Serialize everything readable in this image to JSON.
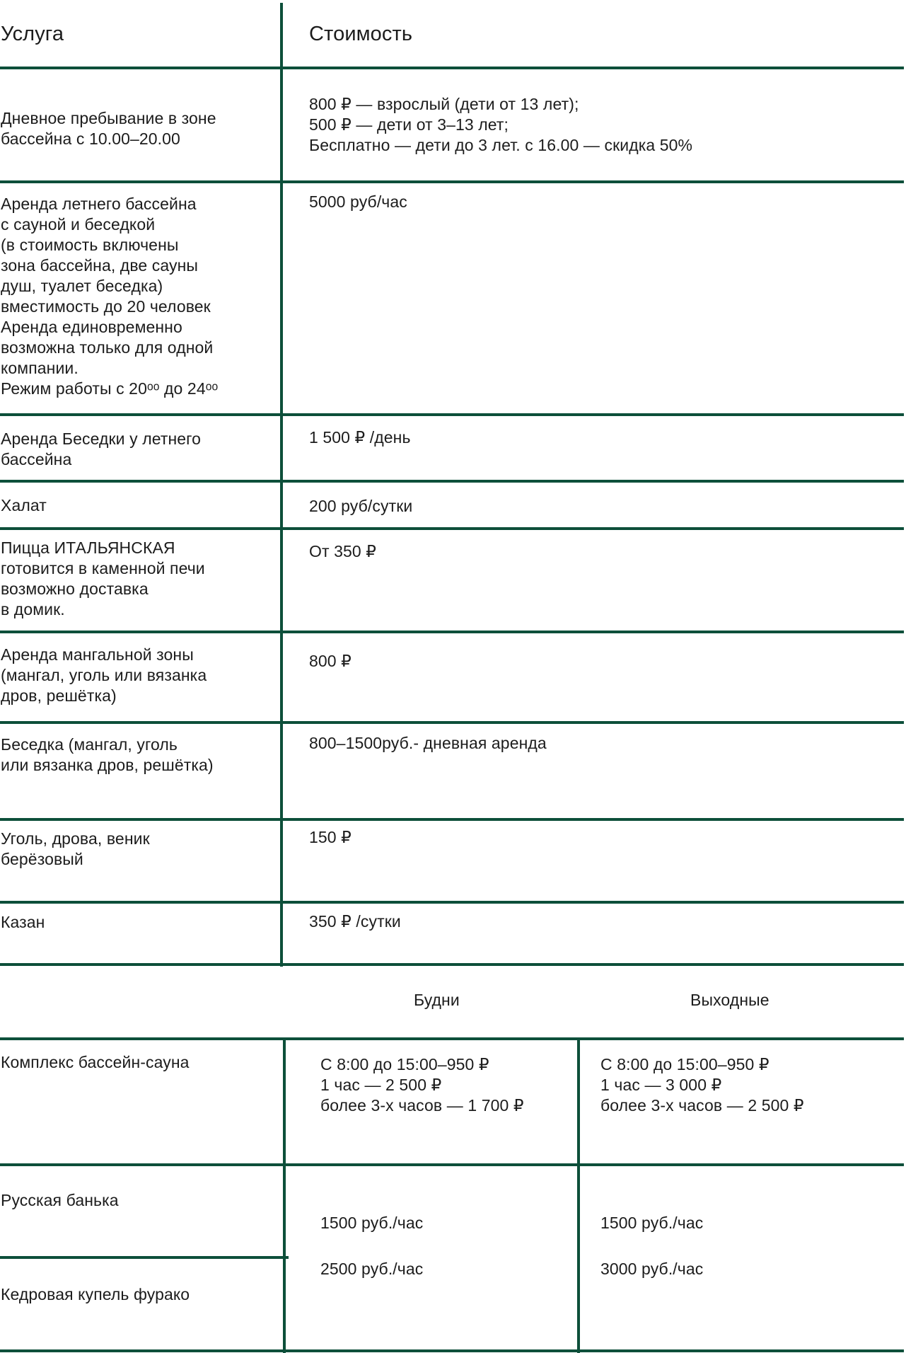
{
  "table1": {
    "header": {
      "service": "Услуга",
      "price": "Стоимость"
    },
    "rows": [
      {
        "service": "Дневное пребывание в зоне\nбассейна с 10.00–20.00",
        "price": "800 ₽ — взрослый (дети от 13 лет);\n500 ₽ — дети от 3–13 лет;\nБесплатно — дети до 3 лет. с 16.00 — скидка 50%"
      },
      {
        "service": "Аренда летнего бассейна\nс сауной и беседкой\n(в стоимость включены\nзона бассейна, две сауны\nдуш, туалет беседка)\nвместимость до 20 человек\nАренда единовременно\nвозможна только для одной\nкомпании.\nРежим работы с 20ᵒᵒ до 24ᵒᵒ",
        "price": "5000 руб/час"
      },
      {
        "service": "Аренда Беседки у летнего\nбассейна",
        "price": "1 500 ₽ /день"
      },
      {
        "service": "Халат",
        "price": "200 руб/сутки"
      },
      {
        "service": "Пицца ИТАЛЬЯНСКАЯ\nготовится в каменной печи\nвозможно доставка\nв домик.",
        "price": "От 350 ₽"
      },
      {
        "service": "Аренда мангальной зоны\n(мангал, уголь или вязанка\nдров, решётка)",
        "price": "800 ₽"
      },
      {
        "service": "Беседка (мангал, уголь\nили вязанка дров, решётка)",
        "price": "800–1500руб.- дневная аренда"
      },
      {
        "service": "Уголь, дрова, веник\nберёзовый",
        "price": "150 ₽"
      },
      {
        "service": "Казан",
        "price": "350 ₽ /сутки"
      }
    ]
  },
  "table2": {
    "header": {
      "weekdays": "Будни",
      "weekend": "Выходные"
    },
    "rows": [
      {
        "service": "Комплекс бассейн-сауна",
        "weekdays": "С 8:00 до 15:00–950 ₽\n1 час — 2 500 ₽\nболее 3-х часов — 1 700 ₽",
        "weekend": "С 8:00 до 15:00–950 ₽\n1 час — 3 000 ₽\nболее 3-х часов — 2 500 ₽"
      },
      {
        "service": "Русская банька",
        "weekdays": "1500 руб./час",
        "weekend": "1500 руб./час"
      },
      {
        "service": "Кедровая купель фурако",
        "weekdays": "2500 руб./час",
        "weekend": "3000 руб./час"
      }
    ]
  },
  "colors": {
    "border": "#0d4f3a",
    "text": "#1c1c1c",
    "background": "#ffffff"
  }
}
